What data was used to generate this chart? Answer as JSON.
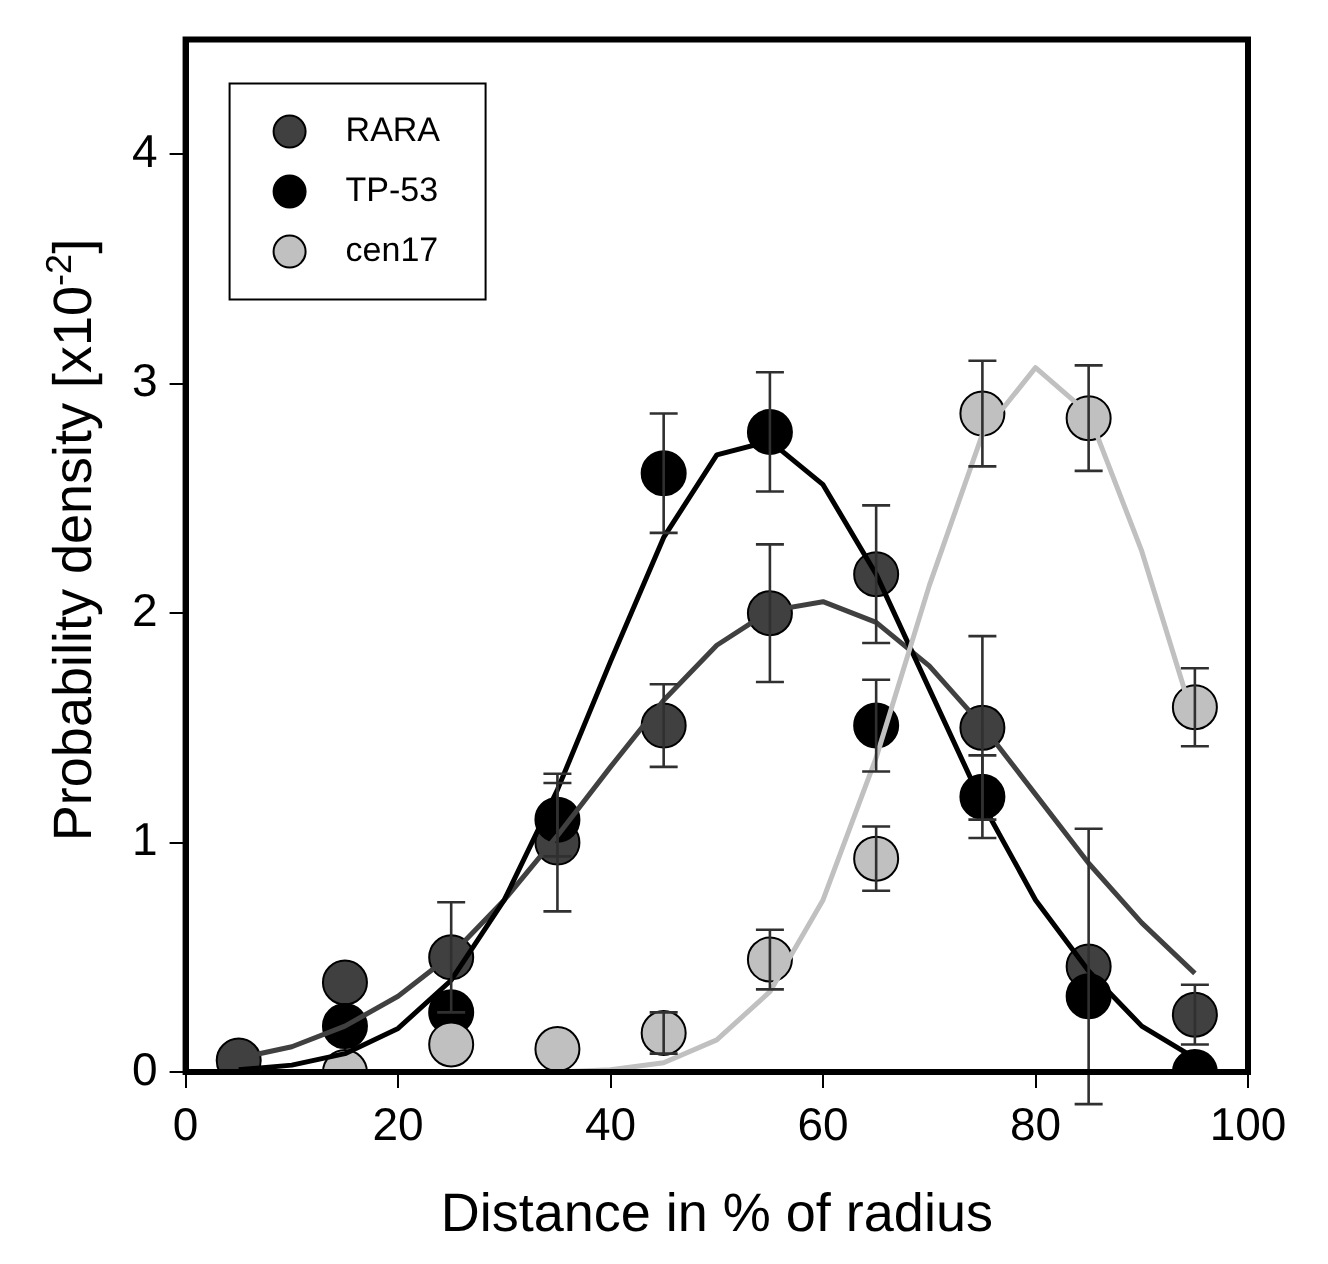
{
  "chart_data": {
    "type": "scatter",
    "xlabel": "Distance in % of radius",
    "ylabel": "Probability density [x10$^{-2}$]",
    "x": [
      5,
      15,
      25,
      35,
      45,
      55,
      65,
      75,
      85,
      95
    ],
    "xlim": [
      0,
      100
    ],
    "xticks": [
      0,
      20,
      40,
      60,
      80,
      100
    ],
    "ylim": [
      0,
      4.5
    ],
    "yticks": [
      0,
      1,
      2,
      3,
      4
    ],
    "legend": "top left",
    "marker": "circle",
    "grid": false,
    "series": [
      {
        "name": "RARA",
        "color": "#404040",
        "values": [
          0.05,
          0.39,
          0.5,
          1.0,
          1.51,
          2.0,
          2.17,
          1.5,
          0.46,
          0.25
        ],
        "errors": [
          null,
          null,
          0.24,
          0.3,
          0.18,
          0.3,
          0.3,
          0.4,
          0.6,
          0.13
        ]
      },
      {
        "name": "TP-53",
        "color": "#000000",
        "values": [
          null,
          0.2,
          0.26,
          1.1,
          2.61,
          2.79,
          1.51,
          1.2,
          0.33,
          0
        ],
        "errors": [
          null,
          null,
          null,
          0.16,
          0.26,
          0.26,
          0.2,
          0.18,
          null,
          null
        ]
      },
      {
        "name": "cen17",
        "color": "#c0c0c0",
        "values": [
          null,
          0,
          0.12,
          0.1,
          0.17,
          0.49,
          0.93,
          2.87,
          2.85,
          1.59
        ],
        "errors": [
          null,
          null,
          null,
          null,
          0.09,
          0.13,
          0.14,
          0.23,
          0.23,
          0.17
        ]
      },
      {
        "type": "line",
        "marker": "none",
        "color": "#404040",
        "x": [
          5,
          10,
          15,
          20,
          25,
          30,
          35,
          40,
          45,
          50,
          55,
          60,
          65,
          70,
          75,
          80,
          85,
          90,
          95
        ],
        "values": [
          0.06,
          0.11,
          0.2,
          0.33,
          0.51,
          0.75,
          1.03,
          1.33,
          1.62,
          1.86,
          2.01,
          2.05,
          1.96,
          1.77,
          1.51,
          1.21,
          0.91,
          0.65,
          0.43
        ]
      },
      {
        "type": "line",
        "marker": "none",
        "color": "#000000",
        "x": [
          5,
          10,
          15,
          20,
          25,
          30,
          35,
          40,
          45,
          50,
          55,
          60,
          65,
          70,
          75,
          80,
          85,
          90,
          95
        ],
        "values": [
          0.01,
          0.03,
          0.08,
          0.19,
          0.4,
          0.75,
          1.23,
          1.79,
          2.33,
          2.69,
          2.75,
          2.56,
          2.17,
          1.67,
          1.17,
          0.75,
          0.44,
          0.2,
          0.06
        ]
      },
      {
        "type": "line",
        "marker": "none",
        "color": "#c0c0c0",
        "x": [
          5,
          20,
          35,
          40,
          45,
          50,
          55,
          60,
          65,
          70,
          75,
          80,
          85,
          90,
          95
        ],
        "values": [
          0,
          0,
          0,
          0.01,
          0.04,
          0.14,
          0.35,
          0.75,
          1.37,
          2.12,
          2.78,
          3.07,
          2.87,
          2.27,
          1.52
        ]
      }
    ]
  }
}
